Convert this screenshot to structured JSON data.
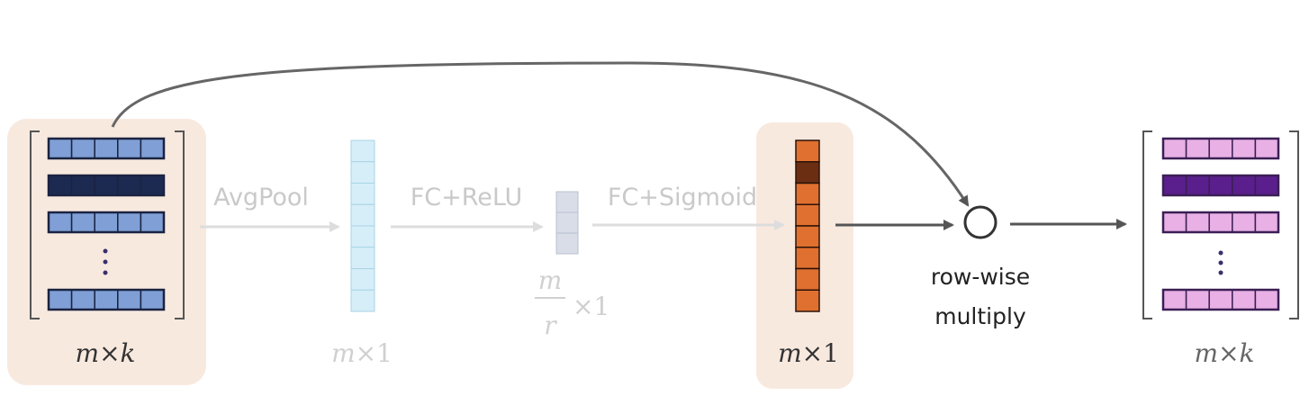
{
  "labels": {
    "avgpool": "AvgPool",
    "fc_relu": "FC+ReLU",
    "fc_sigmoid": "FC+Sigmoid",
    "multiply_line1": "row-wise",
    "multiply_line2": "multiply"
  },
  "dims": {
    "input": {
      "a": "m",
      "times": "×",
      "b": "k"
    },
    "pooled": {
      "a": "m",
      "times": "×1"
    },
    "reduced": {
      "num": "m",
      "den": "r",
      "times": "×1"
    },
    "weights": {
      "a": "m",
      "times": "×1"
    },
    "output": {
      "a": "m",
      "times": "×",
      "b": "k"
    }
  },
  "colors": {
    "input_row": "#7f9fd6",
    "input_row_highlight": "#1c2a52",
    "pooled_cell": "#d6eef8",
    "reduced_cell": "#d8dde8",
    "weight_cell": "#e0702f",
    "weight_cell_highlight": "#6b2e12",
    "output_row": "#e8b0e4",
    "output_row_highlight": "#5a1f8c",
    "highlight_box": "#f8e9df",
    "arrow_dark": "#555555",
    "arrow_faded": "#dddddd",
    "ellipsis_dots": "#3a2f6b"
  },
  "icons": {
    "multiply": "circle-operator-icon",
    "ellipsis": "vertical-ellipsis-icon"
  }
}
